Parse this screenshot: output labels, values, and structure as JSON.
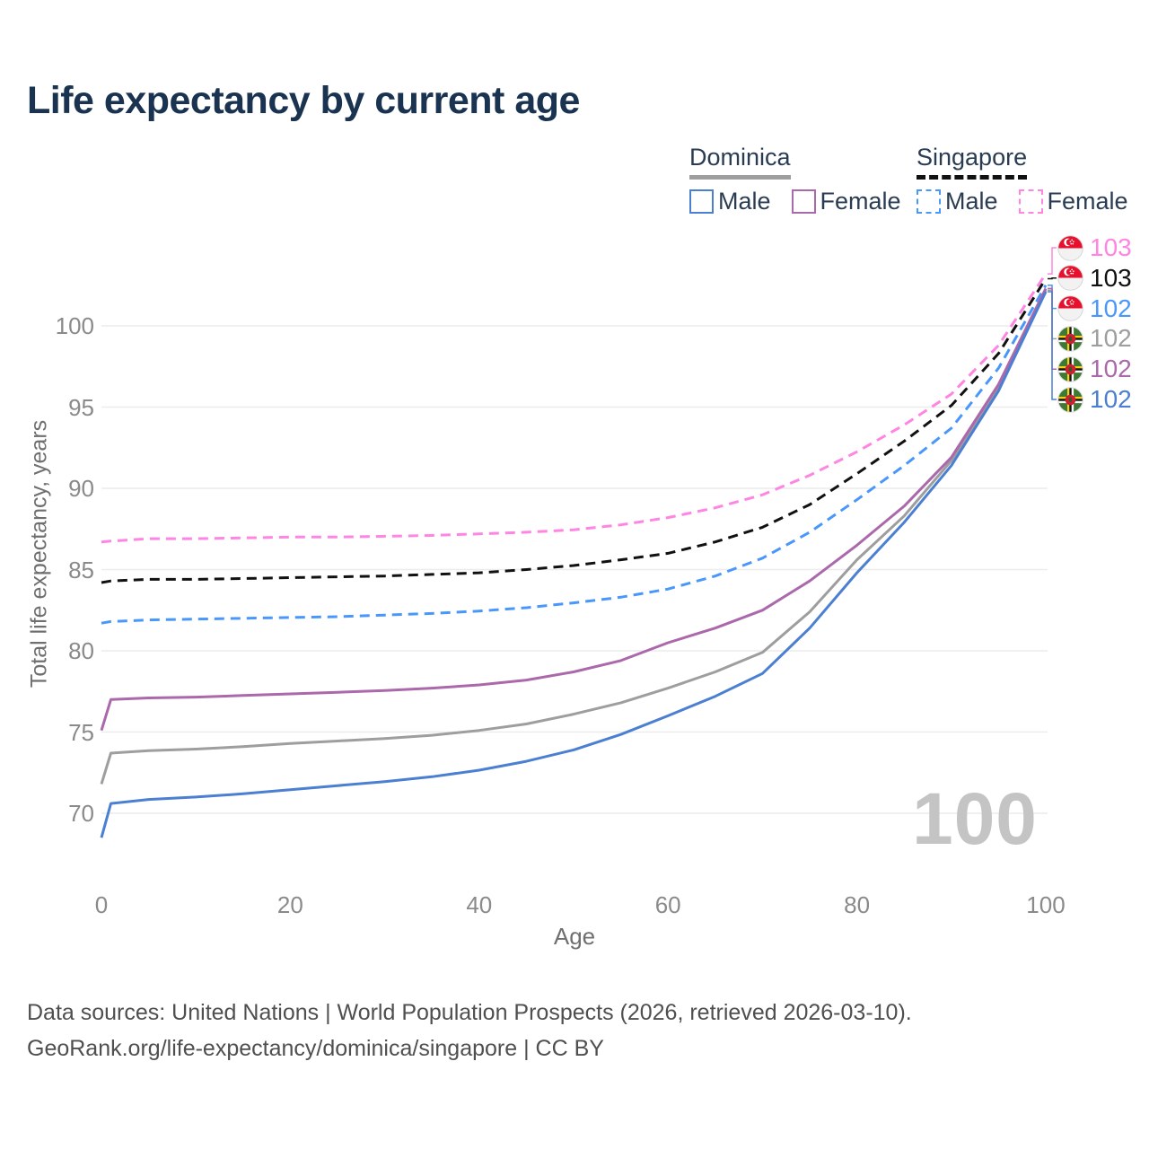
{
  "title": "Life expectancy by current age",
  "legend": {
    "groups": [
      {
        "label": "Dominica",
        "underline": "solid",
        "underline_color": "#9e9e9e",
        "items": [
          {
            "label": "Male",
            "color": "#4b7fd2",
            "dash": false
          },
          {
            "label": "Female",
            "color": "#ab68ab",
            "dash": false
          }
        ]
      },
      {
        "label": "Singapore",
        "underline": "dashed",
        "underline_color": "#111111",
        "items": [
          {
            "label": "Male",
            "color": "#4a97fc",
            "dash": true
          },
          {
            "label": "Female",
            "color": "#ff85e2",
            "dash": true
          }
        ]
      }
    ]
  },
  "chart_data": {
    "type": "line",
    "title": "Life expectancy by current age",
    "xlabel": "Age",
    "ylabel": "Total life expectancy, years",
    "x_ticks": [
      0,
      20,
      40,
      60,
      80,
      100
    ],
    "y_ticks": [
      70,
      75,
      80,
      85,
      90,
      95,
      100
    ],
    "xlim": [
      0,
      100
    ],
    "ylim": [
      68,
      103.5
    ],
    "grid": "horizontal",
    "legend_position": "top-right",
    "x": [
      0,
      1,
      5,
      10,
      15,
      20,
      25,
      30,
      35,
      40,
      45,
      50,
      55,
      60,
      65,
      70,
      75,
      80,
      85,
      90,
      95,
      100
    ],
    "series": [
      {
        "name": "Singapore Female",
        "country": "Singapore",
        "sex": "Female",
        "color": "#ff85e2",
        "dash": true,
        "flag": "sg",
        "end_label": "103",
        "values": [
          86.7,
          86.75,
          86.9,
          86.9,
          86.95,
          87.0,
          87.0,
          87.05,
          87.1,
          87.2,
          87.3,
          87.45,
          87.75,
          88.2,
          88.8,
          89.6,
          90.8,
          92.25,
          93.9,
          95.8,
          98.8,
          103.2
        ]
      },
      {
        "name": "Singapore",
        "country": "Singapore",
        "sex": "Both",
        "color": "#111111",
        "dash": true,
        "flag": "sg",
        "end_label": "103",
        "values": [
          84.2,
          84.3,
          84.4,
          84.4,
          84.45,
          84.5,
          84.55,
          84.6,
          84.7,
          84.8,
          85.0,
          85.25,
          85.6,
          86.0,
          86.7,
          87.6,
          89.0,
          90.9,
          92.9,
          95.1,
          98.3,
          102.9
        ]
      },
      {
        "name": "Singapore Male",
        "country": "Singapore",
        "sex": "Male",
        "color": "#4a97fc",
        "dash": true,
        "flag": "sg",
        "end_label": "102",
        "values": [
          81.7,
          81.8,
          81.9,
          81.95,
          82.0,
          82.05,
          82.1,
          82.2,
          82.3,
          82.45,
          82.65,
          82.95,
          83.3,
          83.8,
          84.6,
          85.7,
          87.3,
          89.3,
          91.4,
          93.7,
          97.4,
          102.5
        ]
      },
      {
        "name": "Dominica",
        "country": "Dominica",
        "sex": "Both",
        "color": "#9e9e9e",
        "dash": false,
        "flag": "dm",
        "end_label": "102",
        "values": [
          71.8,
          73.7,
          73.85,
          73.95,
          74.1,
          74.3,
          74.45,
          74.6,
          74.8,
          75.1,
          75.5,
          76.1,
          76.8,
          77.7,
          78.7,
          79.9,
          82.4,
          85.6,
          88.3,
          91.7,
          96.2,
          102.2
        ]
      },
      {
        "name": "Dominica Female",
        "country": "Dominica",
        "sex": "Female",
        "color": "#ab68ab",
        "dash": false,
        "flag": "dm",
        "end_label": "102",
        "values": [
          75.1,
          77.0,
          77.1,
          77.15,
          77.25,
          77.35,
          77.45,
          77.55,
          77.7,
          77.9,
          78.2,
          78.7,
          79.4,
          80.5,
          81.4,
          82.5,
          84.3,
          86.5,
          88.9,
          91.9,
          96.4,
          102.3
        ]
      },
      {
        "name": "Dominica Male",
        "country": "Dominica",
        "sex": "Male",
        "color": "#4b7fd2",
        "dash": false,
        "flag": "dm",
        "end_label": "102",
        "values": [
          68.5,
          70.6,
          70.85,
          71.0,
          71.2,
          71.45,
          71.7,
          71.95,
          72.25,
          72.65,
          73.2,
          73.9,
          74.85,
          76.0,
          77.2,
          78.6,
          81.4,
          84.8,
          87.9,
          91.4,
          96.0,
          102.1
        ]
      }
    ]
  },
  "watermark": "100",
  "footer": {
    "line1": "Data sources: United Nations | World Population Prospects (2026, retrieved 2026-03-10).",
    "line2": "GeoRank.org/life-expectancy/dominica/singapore | CC BY"
  }
}
